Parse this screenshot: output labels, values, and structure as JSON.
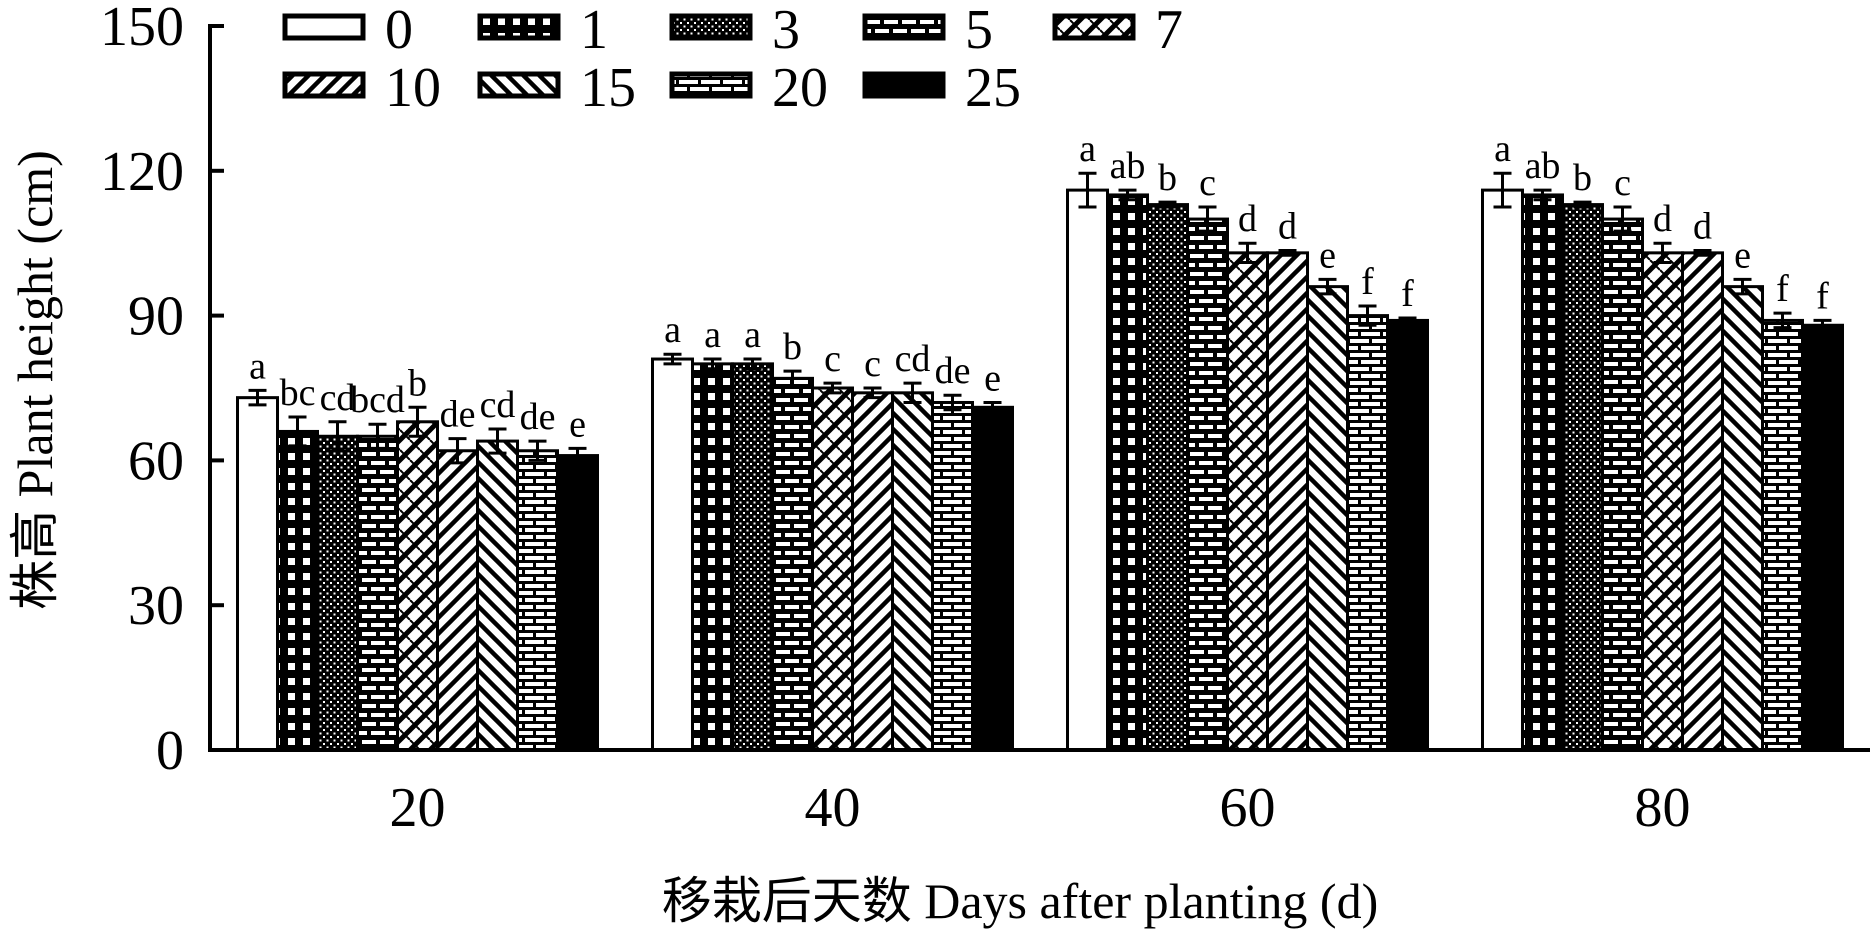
{
  "chart_data": {
    "type": "bar",
    "xlabel": "移栽后天数 Days after planting (d)",
    "ylabel": "株高 Plant height (cm)",
    "ylim": [
      0,
      150
    ],
    "yticks": [
      0,
      30,
      60,
      90,
      120,
      150
    ],
    "categories": [
      "20",
      "40",
      "60",
      "80"
    ],
    "grid": false,
    "legend_position": "top-left",
    "series": [
      {
        "name": "0",
        "pattern": "white",
        "values": [
          73,
          81,
          116,
          116
        ],
        "errors": [
          1.5,
          1,
          3.5,
          3.5
        ],
        "letters": [
          "a",
          "a",
          "a",
          "a"
        ]
      },
      {
        "name": "1",
        "pattern": "dots-large",
        "values": [
          66,
          80,
          115,
          115
        ],
        "errors": [
          3,
          1,
          1,
          1
        ],
        "letters": [
          "bc",
          "a",
          "ab",
          "ab"
        ]
      },
      {
        "name": "3",
        "pattern": "dots-fine",
        "values": [
          65,
          80,
          113,
          113
        ],
        "errors": [
          3,
          1,
          0.5,
          0.5
        ],
        "letters": [
          "cd",
          "a",
          "b",
          "b"
        ]
      },
      {
        "name": "5",
        "pattern": "brick",
        "values": [
          65,
          77,
          110,
          110
        ],
        "errors": [
          2.5,
          1.5,
          2.5,
          2.5
        ],
        "letters": [
          "bcd",
          "b",
          "c",
          "c"
        ]
      },
      {
        "name": "7",
        "pattern": "zigzag",
        "values": [
          68,
          75,
          103,
          103
        ],
        "errors": [
          3,
          1,
          2,
          2
        ],
        "letters": [
          "b",
          "c",
          "d",
          "d"
        ]
      },
      {
        "name": "10",
        "pattern": "diag-up",
        "values": [
          62,
          74,
          103,
          103
        ],
        "errors": [
          2.5,
          1,
          0.5,
          0.5
        ],
        "letters": [
          "de",
          "c",
          "d",
          "d"
        ]
      },
      {
        "name": "15",
        "pattern": "diag-down",
        "values": [
          64,
          74,
          96,
          96
        ],
        "errors": [
          2.5,
          2,
          1.5,
          1.5
        ],
        "letters": [
          "cd",
          "cd",
          "e",
          "e"
        ]
      },
      {
        "name": "20",
        "pattern": "hbrick",
        "values": [
          62,
          72,
          90,
          89
        ],
        "errors": [
          2,
          1.5,
          2,
          1.5
        ],
        "letters": [
          "de",
          "de",
          "f",
          "f"
        ]
      },
      {
        "name": "25",
        "pattern": "black",
        "values": [
          61,
          71,
          89,
          88
        ],
        "errors": [
          1.5,
          1,
          0.5,
          1
        ],
        "letters": [
          "e",
          "e",
          "f",
          "f"
        ]
      }
    ]
  }
}
